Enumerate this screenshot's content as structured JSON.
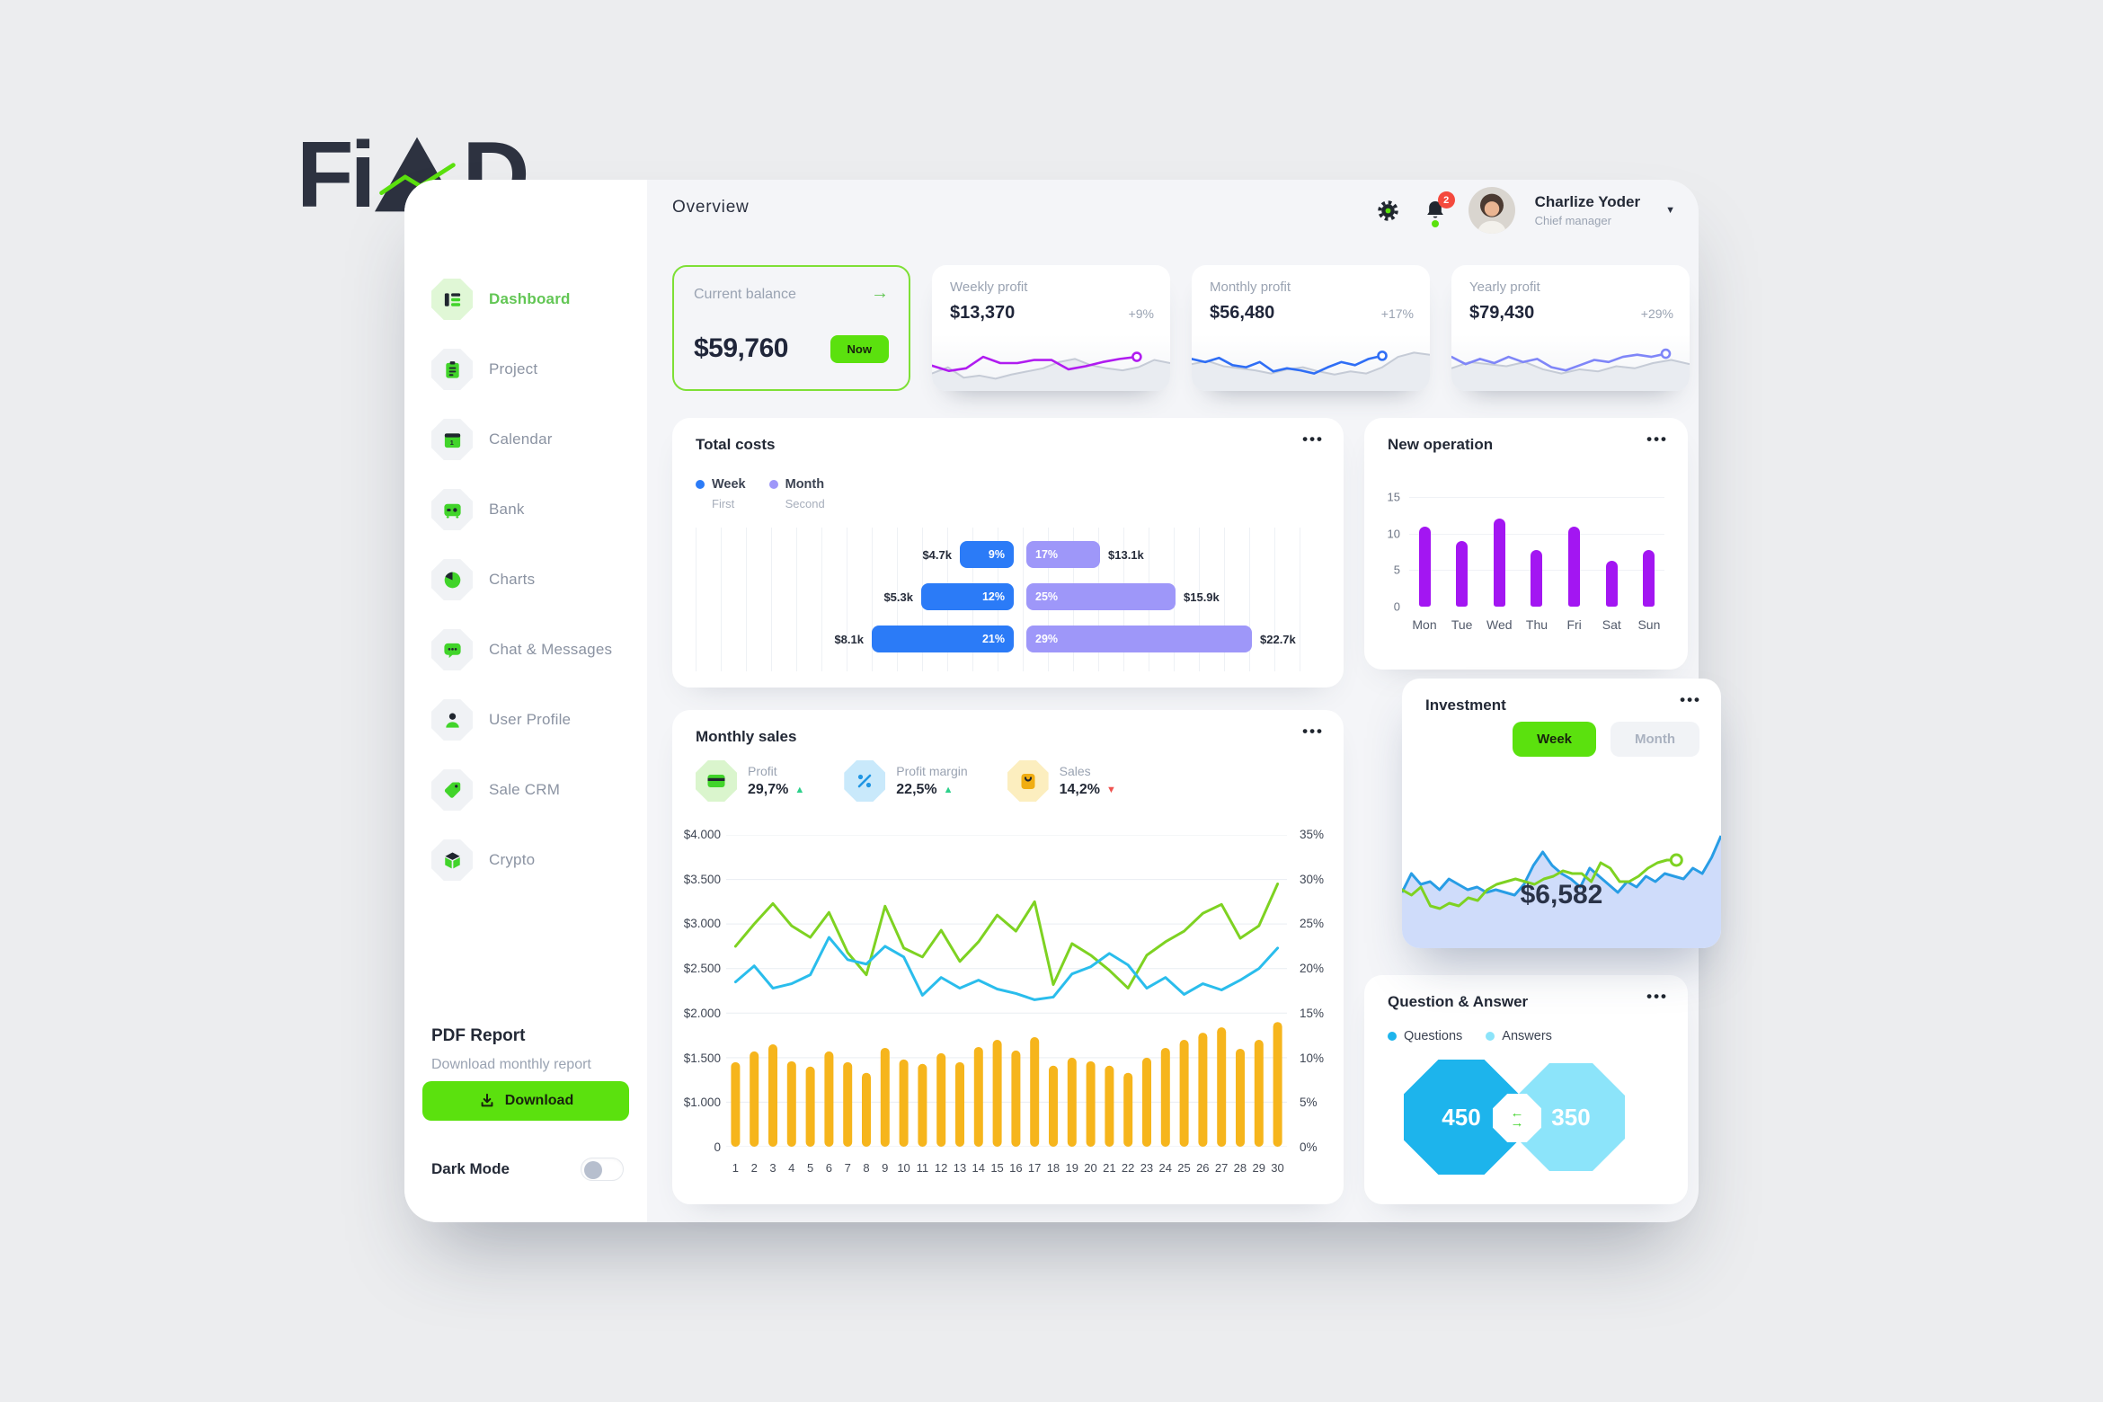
{
  "logo": {
    "text_left": "Fi",
    "text_right": "D"
  },
  "header": {
    "title": "Overview",
    "notification_count": "2",
    "user_name": "Charlize Yoder",
    "user_role": "Chief manager"
  },
  "icons": {
    "more": "•••",
    "arrow_right": "→",
    "caret_down": "▼",
    "triangle_up": "▲",
    "triangle_down": "▼",
    "swap_left": "←",
    "swap_right": "→"
  },
  "sidebar": {
    "items": [
      {
        "label": "Dashboard",
        "icon": "dashboard",
        "active": true
      },
      {
        "label": "Project",
        "icon": "project",
        "active": false
      },
      {
        "label": "Calendar",
        "icon": "calendar",
        "active": false
      },
      {
        "label": "Bank",
        "icon": "bank",
        "active": false
      },
      {
        "label": "Charts",
        "icon": "charts",
        "active": false
      },
      {
        "label": "Chat & Messages",
        "icon": "chat",
        "active": false
      },
      {
        "label": "User Profile",
        "icon": "user",
        "active": false
      },
      {
        "label": "Sale CRM",
        "icon": "tag",
        "active": false
      },
      {
        "label": "Crypto",
        "icon": "crypto",
        "active": false
      }
    ],
    "pdf_title": "PDF Report",
    "pdf_subtitle": "Download monthly report",
    "download_label": "Download",
    "dark_mode_label": "Dark Mode"
  },
  "balance_card": {
    "title": "Current balance",
    "value": "$59,760",
    "button_label": "Now"
  },
  "profit_cards": [
    {
      "title": "Weekly profit",
      "value": "$13,370",
      "change": "+9%",
      "color_key": "spark_purple",
      "line_span": 0.86,
      "line": [
        45,
        35,
        40,
        62,
        50,
        50,
        56,
        56,
        38,
        44,
        52,
        58,
        62
      ],
      "base": [
        30,
        42,
        22,
        26,
        20,
        28,
        34,
        40,
        52,
        58,
        46,
        40,
        36,
        42,
        56,
        50
      ]
    },
    {
      "title": "Monthly profit",
      "value": "$56,480",
      "change": "+17%",
      "color_key": "spark_blue",
      "line_span": 0.8,
      "line": [
        58,
        52,
        60,
        46,
        42,
        52,
        34,
        40,
        36,
        30,
        42,
        52,
        46,
        58,
        64
      ],
      "base": [
        48,
        54,
        44,
        40,
        36,
        30,
        38,
        42,
        34,
        28,
        34,
        30,
        42,
        62,
        70,
        66
      ]
    },
    {
      "title": "Yearly profit",
      "value": "$79,430",
      "change": "+29%",
      "color_key": "spark_periwinkle",
      "line_span": 0.9,
      "line": [
        62,
        48,
        58,
        50,
        62,
        52,
        58,
        42,
        36,
        46,
        56,
        52,
        62,
        66,
        62,
        68
      ],
      "base": [
        40,
        52,
        48,
        44,
        52,
        38,
        30,
        38,
        34,
        44,
        40,
        50,
        56,
        48
      ]
    }
  ],
  "total_costs": {
    "title": "Total costs",
    "legend": [
      {
        "label": "Week",
        "sublabel": "First",
        "color_key": "blue"
      },
      {
        "label": "Month",
        "sublabel": "Second",
        "color_key": "periwinkle"
      }
    ],
    "rows": [
      {
        "week_value": "$4.7k",
        "week_pct": "9%",
        "week_w": 60,
        "month_pct": "17%",
        "month_w": 82,
        "month_value": "$13.1k"
      },
      {
        "week_value": "$5.3k",
        "week_pct": "12%",
        "week_w": 103,
        "month_pct": "25%",
        "month_w": 166,
        "month_value": "$15.9k"
      },
      {
        "week_value": "$8.1k",
        "week_pct": "21%",
        "week_w": 158,
        "month_pct": "29%",
        "month_w": 251,
        "month_value": "$22.7k"
      }
    ]
  },
  "new_operation": {
    "title": "New operation",
    "chart": {
      "type": "bar",
      "categories": [
        "Mon",
        "Tue",
        "Wed",
        "Thu",
        "Fri",
        "Sat",
        "Sun"
      ],
      "values": [
        11,
        9,
        12,
        7.8,
        11,
        6.3,
        7.8
      ],
      "y_ticks": [
        "15",
        "10",
        "5",
        "0"
      ],
      "ymax": 15
    }
  },
  "investment": {
    "title": "Investment",
    "week_label": "Week",
    "month_label": "Month",
    "value": "$6,582",
    "chart": {
      "type": "area",
      "blue_values": [
        38,
        52,
        44,
        46,
        40,
        48,
        44,
        40,
        42,
        38,
        40,
        38,
        36,
        44,
        58,
        68,
        58,
        52,
        48,
        42,
        56,
        50,
        44,
        38,
        46,
        42,
        50,
        46,
        52,
        50,
        48,
        56,
        52,
        64,
        80
      ],
      "green_values": [
        40,
        36,
        42,
        28,
        26,
        30,
        28,
        34,
        32,
        40,
        44,
        46,
        48,
        46,
        44,
        48,
        50,
        54,
        52,
        52,
        46,
        60,
        56,
        46,
        46,
        50,
        56,
        60,
        62,
        62
      ],
      "green_span": 0.86
    }
  },
  "monthly_sales": {
    "title": "Monthly sales",
    "stats": [
      {
        "label": "Profit",
        "value": "29,7%",
        "direction": "up",
        "icon": "card",
        "bg": "#daf5cd"
      },
      {
        "label": "Profit margin",
        "value": "22,5%",
        "direction": "up",
        "icon": "percent",
        "bg": "#c9e9fb"
      },
      {
        "label": "Sales",
        "value": "14,2%",
        "direction": "down",
        "icon": "bag",
        "bg": "#fceebf"
      }
    ],
    "chart": {
      "type": "mixed",
      "x_labels": [
        "1",
        "2",
        "3",
        "4",
        "5",
        "6",
        "7",
        "8",
        "9",
        "10",
        "11",
        "12",
        "13",
        "14",
        "15",
        "16",
        "17",
        "18",
        "19",
        "20",
        "21",
        "22",
        "23",
        "24",
        "25",
        "26",
        "27",
        "28",
        "29",
        "30"
      ],
      "left_ticks": [
        "$4.000",
        "$3.500",
        "$3.000",
        "$2.500",
        "$2.000",
        "$1.500",
        "$1.000",
        "0"
      ],
      "right_ticks": [
        "35%",
        "30%",
        "25%",
        "20%",
        "15%",
        "10%",
        "5%",
        "0%"
      ],
      "ymax_pct": 35,
      "series": [
        {
          "name": "Profit",
          "type": "line",
          "color_key": "line_green",
          "values": [
            22.5,
            25,
            27.3,
            24.8,
            23.5,
            26.3,
            21.8,
            19.3,
            27,
            22.3,
            21.3,
            24.3,
            20.8,
            23,
            26,
            24.2,
            27.5,
            18.2,
            22.8,
            21.5,
            19.8,
            17.8,
            21.5,
            23,
            24.2,
            26.2,
            27.2,
            23.4,
            24.8,
            29.5
          ]
        },
        {
          "name": "Profit margin",
          "type": "line",
          "color_key": "line_cyan",
          "values": [
            18.5,
            20.3,
            17.8,
            18.3,
            19.3,
            23.5,
            21,
            20.5,
            22.5,
            21.3,
            17,
            19,
            17.8,
            18.7,
            17.7,
            17.2,
            16.5,
            16.8,
            19.4,
            20.2,
            21.7,
            20.4,
            17.8,
            19,
            17.1,
            18.3,
            17.6,
            18.7,
            20,
            22.3
          ]
        },
        {
          "name": "Sales",
          "type": "bar",
          "color_key": "bar_yellow",
          "values": [
            9.5,
            10.7,
            11.5,
            9.6,
            9,
            10.7,
            9.5,
            8.3,
            11.1,
            9.8,
            9.3,
            10.5,
            9.5,
            11.2,
            12,
            10.8,
            12.3,
            9.1,
            10,
            9.6,
            9.1,
            8.3,
            10,
            11.1,
            12,
            12.8,
            13.4,
            11,
            12,
            14
          ]
        }
      ]
    }
  },
  "qa": {
    "title": "Question & Answer",
    "legend": [
      {
        "label": "Questions",
        "color_key": "qa_blue"
      },
      {
        "label": "Answers",
        "color_key": "qa_light"
      }
    ],
    "questions_value": "450",
    "answers_value": "350"
  },
  "colors": {
    "lime": "#5be10e",
    "green_text": "#62c654",
    "icon_green": "#41d42a",
    "content_bg": "#f4f5f8",
    "blue": "#2b7bf7",
    "periwinkle": "#9e97f9",
    "purple": "#a316f2",
    "spark_purple": "#b01cf0",
    "spark_blue": "#2f6ef5",
    "spark_periwinkle": "#7f86f8",
    "spark_gray": "#c5cbd6",
    "spark_fill": "#e9ecf1",
    "inv_blue": "#289de5",
    "inv_fill": "#cfdcfa",
    "line_green": "#7ed222",
    "line_cyan": "#2abdec",
    "bar_yellow": "#f6b51c",
    "qa_blue": "#1db4ec",
    "qa_light": "#8ce4fa",
    "red": "#f4493d",
    "up": "#2cd08a",
    "down": "#ef5350"
  }
}
